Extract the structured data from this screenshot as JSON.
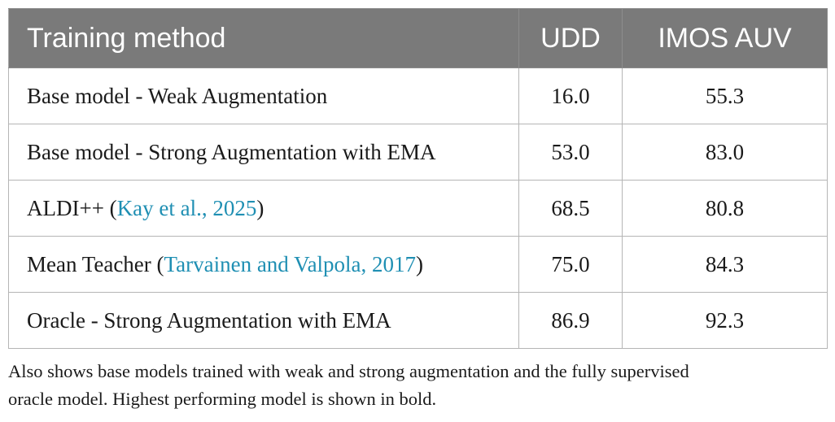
{
  "table": {
    "headers": [
      "Training method",
      "UDD",
      "IMOS AUV"
    ],
    "rows": [
      {
        "method": "Base model - Weak Augmentation",
        "method_pre": "",
        "citation": "",
        "method_post": "",
        "udd": "16.0",
        "imos": "55.3"
      },
      {
        "method": "Base model - Strong Augmentation with EMA",
        "method_pre": "",
        "citation": "",
        "method_post": "",
        "udd": "53.0",
        "imos": "83.0"
      },
      {
        "method": "",
        "method_pre": "ALDI++ (",
        "citation": "Kay et al., 2025",
        "method_post": ")",
        "udd": "68.5",
        "imos": "80.8"
      },
      {
        "method": "",
        "method_pre": "Mean Teacher (",
        "citation": "Tarvainen and Valpola, 2017",
        "method_post": ")",
        "udd": "75.0",
        "imos": "84.3"
      },
      {
        "method": "Oracle - Strong Augmentation with EMA",
        "method_pre": "",
        "citation": "",
        "method_post": "",
        "udd": "86.9",
        "imos": "92.3"
      }
    ]
  },
  "footnote": {
    "line1": "Also shows base models trained with weak and strong augmentation and the fully supervised",
    "line2": "oracle model. Highest performing model is shown in bold."
  },
  "colors": {
    "header_bg": "#7a7a7a",
    "header_text": "#ffffff",
    "citation_link": "#1f8fb3",
    "grid": "#b5b5b5"
  }
}
